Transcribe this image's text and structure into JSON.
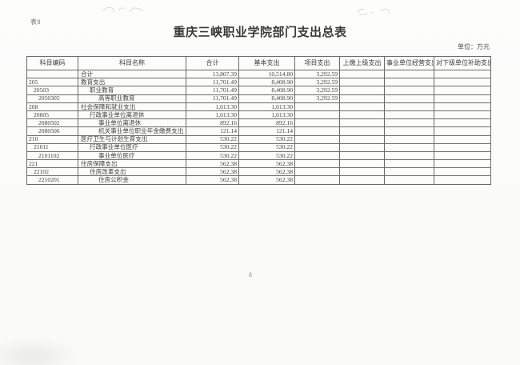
{
  "page": {
    "form_tag": "表8",
    "unit_label": "单位：万元",
    "page_number": "8"
  },
  "title": "重庆三峡职业学院部门支出总表",
  "table": {
    "columns": [
      "科目编码",
      "科目名称",
      "合计",
      "基本支出",
      "项目支出",
      "上缴上级支出",
      "事业单位经营支出",
      "对下级单位补助支出"
    ],
    "rows": [
      {
        "code": "",
        "level": 0,
        "name": "合计",
        "total": "13,807.39",
        "basic": "10,514.80",
        "project": "3,292.59",
        "upper": "",
        "operating": "",
        "subsidy": ""
      },
      {
        "code": "205",
        "level": 0,
        "name": "教育支出",
        "total": "11,701.49",
        "basic": "8,408.90",
        "project": "3,292.59",
        "upper": "",
        "operating": "",
        "subsidy": ""
      },
      {
        "code": "20503",
        "level": 1,
        "name": "职业教育",
        "total": "11,701.49",
        "basic": "8,408.90",
        "project": "3,292.59",
        "upper": "",
        "operating": "",
        "subsidy": ""
      },
      {
        "code": "2050305",
        "level": 2,
        "name": "高等职业教育",
        "total": "11,701.49",
        "basic": "8,408.90",
        "project": "3,292.59",
        "upper": "",
        "operating": "",
        "subsidy": ""
      },
      {
        "code": "208",
        "level": 0,
        "name": "社会保障和就业支出",
        "total": "1,013.30",
        "basic": "1,013.30",
        "project": "",
        "upper": "",
        "operating": "",
        "subsidy": ""
      },
      {
        "code": "20805",
        "level": 1,
        "name": "行政事业单位离退休",
        "total": "1,013.30",
        "basic": "1,013.30",
        "project": "",
        "upper": "",
        "operating": "",
        "subsidy": ""
      },
      {
        "code": "2080502",
        "level": 2,
        "name": "事业单位离退休",
        "total": "892.16",
        "basic": "892.16",
        "project": "",
        "upper": "",
        "operating": "",
        "subsidy": ""
      },
      {
        "code": "2080506",
        "level": 2,
        "name": "机关事业单位职业年金缴费支出",
        "total": "121.14",
        "basic": "121.14",
        "project": "",
        "upper": "",
        "operating": "",
        "subsidy": ""
      },
      {
        "code": "210",
        "level": 0,
        "name": "医疗卫生与计划生育支出",
        "total": "530.22",
        "basic": "530.22",
        "project": "",
        "upper": "",
        "operating": "",
        "subsidy": ""
      },
      {
        "code": "21011",
        "level": 1,
        "name": "行政事业单位医疗",
        "total": "530.22",
        "basic": "530.22",
        "project": "",
        "upper": "",
        "operating": "",
        "subsidy": ""
      },
      {
        "code": "2101102",
        "level": 2,
        "name": "事业单位医疗",
        "total": "530.22",
        "basic": "530.22",
        "project": "",
        "upper": "",
        "operating": "",
        "subsidy": ""
      },
      {
        "code": "221",
        "level": 0,
        "name": "住房保障支出",
        "total": "562.38",
        "basic": "562.38",
        "project": "",
        "upper": "",
        "operating": "",
        "subsidy": ""
      },
      {
        "code": "22102",
        "level": 1,
        "name": "住房改革支出",
        "total": "562.38",
        "basic": "562.38",
        "project": "",
        "upper": "",
        "operating": "",
        "subsidy": ""
      },
      {
        "code": "2210201",
        "level": 2,
        "name": "住房公积金",
        "total": "562.38",
        "basic": "562.38",
        "project": "",
        "upper": "",
        "operating": "",
        "subsidy": ""
      }
    ]
  }
}
